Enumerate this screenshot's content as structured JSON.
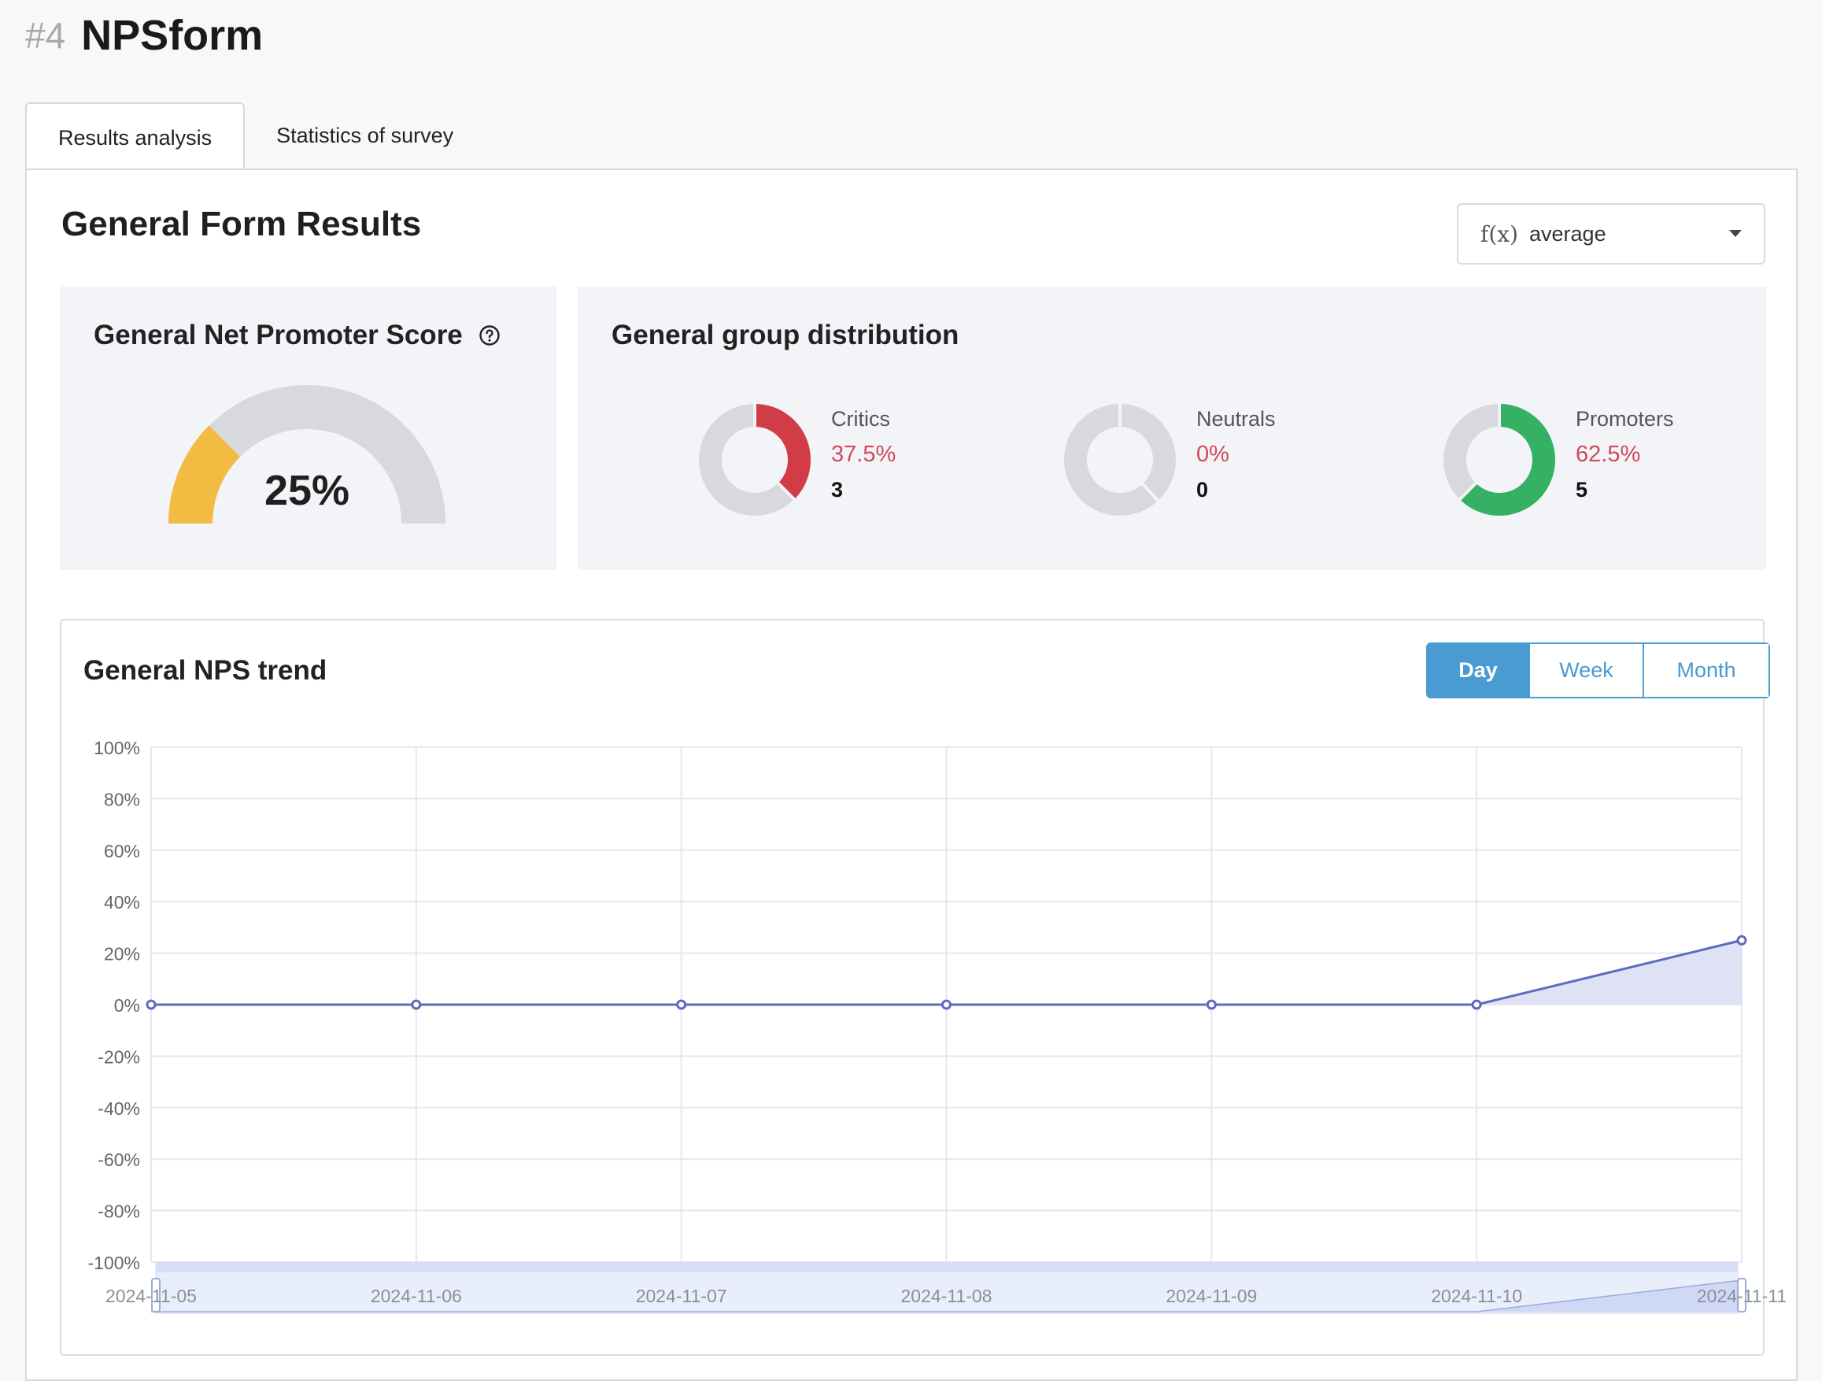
{
  "header": {
    "form_id": "#4",
    "form_title": "NPSform"
  },
  "tabs": [
    {
      "label": "Results analysis",
      "active": true
    },
    {
      "label": "Statistics of survey",
      "active": false
    }
  ],
  "results": {
    "title": "General Form Results",
    "aggregate_select": {
      "icon": "function-icon",
      "icon_text": "f(x)",
      "value": "average"
    },
    "nps_card": {
      "title": "General Net Promoter Score",
      "value_label": "25%",
      "score_fraction": 0.25,
      "colors": {
        "fill": "#f2bb41",
        "track": "#d7d9de"
      }
    },
    "distribution": {
      "title": "General group distribution",
      "groups": [
        {
          "label": "Critics",
          "percent": "37.5%",
          "count": "3",
          "fraction": 0.375,
          "color": "#d23c46"
        },
        {
          "label": "Neutrals",
          "percent": "0%",
          "count": "0",
          "fraction": 0.0,
          "color": "#b9bcc4"
        },
        {
          "label": "Promoters",
          "percent": "62.5%",
          "count": "5",
          "fraction": 0.625,
          "color": "#35b163"
        }
      ]
    },
    "trend": {
      "title": "General NPS trend",
      "granularity": [
        {
          "label": "Day",
          "active": true
        },
        {
          "label": "Week",
          "active": false
        },
        {
          "label": "Month",
          "active": false
        }
      ]
    }
  },
  "chart_data": {
    "type": "area",
    "title": "General NPS trend",
    "x": [
      "2024-11-05",
      "2024-11-06",
      "2024-11-07",
      "2024-11-08",
      "2024-11-09",
      "2024-11-10",
      "2024-11-11"
    ],
    "x_tick_labels": [
      "2024-11-05",
      "2024-11-06",
      "2024-11-07",
      "2024-11-08",
      "2024-11-09",
      "2024-11-10",
      "2024-11-11"
    ],
    "series": [
      {
        "values": [
          0,
          0,
          0,
          0,
          0,
          0,
          25
        ],
        "color": "#5b6bc0"
      }
    ],
    "ylim": [
      -100,
      100
    ],
    "y_ticks": [
      100,
      80,
      60,
      40,
      20,
      0,
      -20,
      -40,
      -60,
      -80,
      -100
    ],
    "y_tick_labels": [
      "100%",
      "80%",
      "60%",
      "40%",
      "20%",
      "0%",
      "-20%",
      "-40%",
      "-60%",
      "-80%",
      "-100%"
    ],
    "grid": true,
    "legend": "none",
    "data_zoom": "bottom"
  }
}
